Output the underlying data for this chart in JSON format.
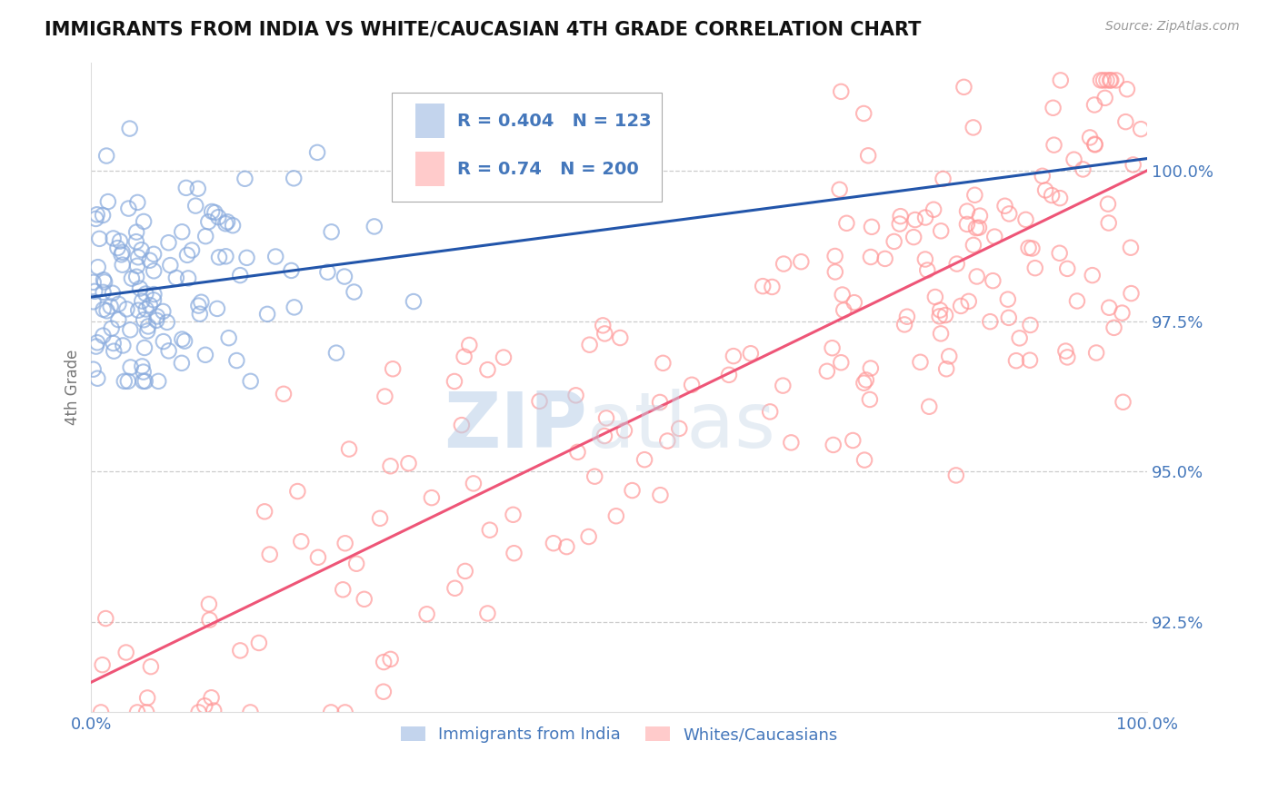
{
  "title": "IMMIGRANTS FROM INDIA VS WHITE/CAUCASIAN 4TH GRADE CORRELATION CHART",
  "source_text": "Source: ZipAtlas.com",
  "ylabel": "4th Grade",
  "xlim": [
    0,
    100
  ],
  "ylim": [
    91.0,
    101.8
  ],
  "yticks": [
    92.5,
    95.0,
    97.5,
    100.0
  ],
  "xtick_labels": [
    "0.0%",
    "100.0%"
  ],
  "ytick_labels": [
    "92.5%",
    "95.0%",
    "97.5%",
    "100.0%"
  ],
  "blue_R": 0.404,
  "blue_N": 123,
  "pink_R": 0.74,
  "pink_N": 200,
  "blue_color": "#88AADD",
  "pink_color": "#FF9999",
  "blue_line_color": "#2255AA",
  "pink_line_color": "#EE5577",
  "legend_label_blue": "Immigrants from India",
  "legend_label_pink": "Whites/Caucasians",
  "watermark_zip": "ZIP",
  "watermark_atlas": "atlas",
  "background_color": "#ffffff",
  "grid_color": "#cccccc",
  "title_color": "#111111",
  "axis_label_color": "#777777",
  "tick_label_color": "#4477BB",
  "blue_trend_x0": 0,
  "blue_trend_y0": 97.9,
  "blue_trend_x1": 100,
  "blue_trend_y1": 100.2,
  "pink_trend_x0": 0,
  "pink_trend_y0": 91.5,
  "pink_trend_x1": 100,
  "pink_trend_y1": 100.0
}
